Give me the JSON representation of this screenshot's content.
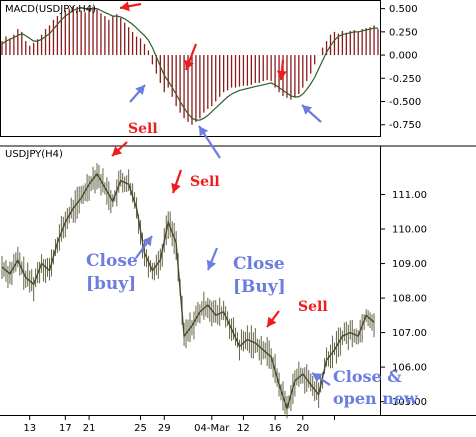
{
  "chart_data": [
    {
      "type": "bar",
      "title": "MACD(USDJPY,H4)",
      "ylim": [
        -0.85,
        0.55
      ],
      "yticks": [
        0.5,
        0.25,
        0.0,
        -0.25,
        -0.5,
        -0.75
      ],
      "yticklabels": [
        "0.500",
        "0.250",
        "0.000",
        "-0.250",
        "-0.500",
        "-0.750"
      ],
      "x": [
        0,
        2,
        4,
        6,
        8,
        10,
        12,
        14,
        16,
        18,
        20,
        22,
        24,
        26,
        28,
        30,
        32,
        34,
        36,
        38,
        40,
        42,
        44,
        46,
        48,
        50,
        52,
        54,
        56,
        58,
        60,
        62,
        64,
        66,
        68,
        70,
        72,
        74,
        76,
        78,
        80,
        82,
        84,
        86,
        88,
        90,
        92,
        94,
        96,
        98,
        100,
        102,
        104,
        106,
        108,
        110,
        112,
        114,
        116,
        118,
        120,
        122,
        124,
        126,
        128,
        130,
        132,
        134,
        136,
        138,
        140,
        142,
        144,
        146,
        148,
        150,
        152,
        154,
        156,
        158,
        160,
        162,
        164,
        166,
        168,
        170,
        172,
        174,
        176,
        178,
        180,
        182,
        184,
        186,
        188,
        190
      ],
      "histogram": [
        0.15,
        0.2,
        0.18,
        0.22,
        0.28,
        0.25,
        0.15,
        0.1,
        0.13,
        0.17,
        0.22,
        0.28,
        0.32,
        0.38,
        0.42,
        0.45,
        0.48,
        0.5,
        0.53,
        0.52,
        0.48,
        0.46,
        0.5,
        0.52,
        0.49,
        0.45,
        0.42,
        0.38,
        0.42,
        0.44,
        0.4,
        0.35,
        0.3,
        0.25,
        0.2,
        0.18,
        0.12,
        0.05,
        -0.1,
        -0.2,
        -0.3,
        -0.4,
        -0.35,
        -0.45,
        -0.55,
        -0.62,
        -0.68,
        -0.72,
        -0.75,
        -0.72,
        -0.68,
        -0.62,
        -0.58,
        -0.55,
        -0.5,
        -0.45,
        -0.4,
        -0.38,
        -0.35,
        -0.35,
        -0.34,
        -0.33,
        -0.33,
        -0.32,
        -0.3,
        -0.3,
        -0.28,
        -0.27,
        -0.28,
        -0.35,
        -0.4,
        -0.44,
        -0.46,
        -0.48,
        -0.46,
        -0.42,
        -0.35,
        -0.28,
        -0.2,
        -0.1,
        0.0,
        0.08,
        0.15,
        0.22,
        0.25,
        0.23,
        0.26,
        0.24,
        0.26,
        0.27,
        0.25,
        0.28,
        0.29,
        0.3,
        0.32,
        0.28
      ],
      "signal": [
        0.12,
        0.15,
        0.17,
        0.19,
        0.21,
        0.23,
        0.21,
        0.18,
        0.15,
        0.15,
        0.17,
        0.2,
        0.23,
        0.28,
        0.33,
        0.38,
        0.42,
        0.45,
        0.48,
        0.5,
        0.51,
        0.5,
        0.5,
        0.5,
        0.5,
        0.48,
        0.46,
        0.44,
        0.42,
        0.42,
        0.41,
        0.39,
        0.36,
        0.33,
        0.29,
        0.25,
        0.21,
        0.16,
        0.08,
        -0.02,
        -0.12,
        -0.22,
        -0.28,
        -0.35,
        -0.42,
        -0.5,
        -0.57,
        -0.63,
        -0.68,
        -0.7,
        -0.7,
        -0.68,
        -0.65,
        -0.61,
        -0.57,
        -0.53,
        -0.49,
        -0.45,
        -0.42,
        -0.4,
        -0.38,
        -0.37,
        -0.36,
        -0.35,
        -0.34,
        -0.33,
        -0.32,
        -0.31,
        -0.3,
        -0.32,
        -0.35,
        -0.38,
        -0.41,
        -0.44,
        -0.45,
        -0.45,
        -0.42,
        -0.37,
        -0.31,
        -0.24,
        -0.15,
        -0.06,
        0.03,
        0.1,
        0.16,
        0.2,
        0.22,
        0.23,
        0.24,
        0.25,
        0.25,
        0.26,
        0.27,
        0.28,
        0.29,
        0.29
      ]
    },
    {
      "type": "line",
      "title": "USDJPY(H4)",
      "ylim": [
        104.7,
        112.0
      ],
      "yticks": [
        105.0,
        106.0,
        107.0,
        108.0,
        109.0,
        110.0,
        111.0
      ],
      "yticklabels": [
        "105.00",
        "106.00",
        "107.00",
        "108.00",
        "109.00",
        "110.00",
        "111.00"
      ],
      "xlim": [
        0,
        190
      ],
      "xticks": [
        14,
        32,
        44,
        70,
        82,
        106,
        122,
        138,
        152,
        168
      ],
      "xticklabels": [
        "13",
        "17",
        "21",
        "25",
        "29",
        "04-Mar",
        "12",
        "16",
        "20",
        ""
      ],
      "x": [
        0,
        4,
        8,
        12,
        16,
        20,
        24,
        28,
        32,
        36,
        40,
        44,
        48,
        52,
        56,
        60,
        64,
        68,
        72,
        76,
        80,
        84,
        88,
        92,
        96,
        100,
        104,
        108,
        112,
        116,
        120,
        124,
        128,
        132,
        136,
        140,
        144,
        148,
        152,
        156,
        160,
        164,
        168,
        172,
        176,
        180,
        184,
        188
      ],
      "close": [
        108.9,
        108.7,
        109.1,
        108.6,
        108.4,
        109.0,
        108.8,
        109.6,
        110.2,
        110.6,
        110.9,
        111.3,
        111.6,
        111.2,
        110.8,
        111.4,
        111.3,
        110.6,
        109.3,
        108.8,
        109.1,
        110.2,
        109.6,
        106.9,
        107.2,
        107.6,
        107.8,
        107.5,
        107.6,
        107.1,
        106.6,
        106.8,
        106.7,
        106.5,
        106.3,
        105.5,
        104.8,
        105.6,
        105.8,
        105.5,
        105.2,
        106.2,
        106.5,
        106.9,
        107.0,
        106.9,
        107.5,
        107.3
      ]
    }
  ],
  "annotations": {
    "sell_1": "Sell",
    "sell_2": "Sell",
    "sell_3": "Sell",
    "close_buy_1_line1": "Close",
    "close_buy_1_line2": "[buy]",
    "close_buy_2_line1": "Close",
    "close_buy_2_line2": "[Buy]",
    "close_open_line1": "Close &",
    "close_open_line2": "open new"
  },
  "colors": {
    "histogram": "#8b1a1a",
    "macd_line": "#2e5e2e",
    "price": "#4a4a2a",
    "sell_arrow": "#ee1c1c",
    "close_arrow": "#6b7de0",
    "sell_text": "#ee1c1c",
    "close_text": "#6b7de0",
    "axis": "#000000"
  }
}
